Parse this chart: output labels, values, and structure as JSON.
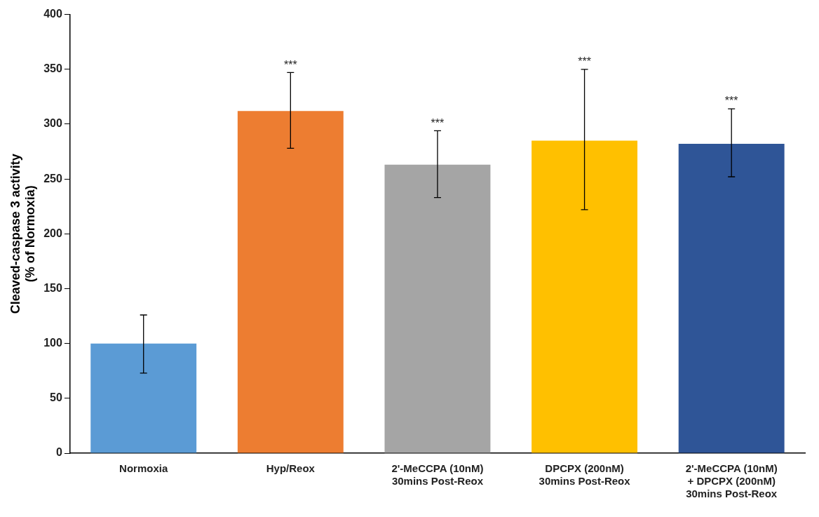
{
  "chart_data": {
    "type": "bar",
    "ylabel": "Cleaved-caspase 3 activity\n(% of Normoxia)",
    "categories": [
      "Normoxia",
      "Hyp/Reox",
      "2'-MeCCPA (10nM)\n30mins Post-Reox",
      "DPCPX (200nM)\n30mins Post-Reox",
      "2'-MeCCPA (10nM)\n+ DPCPX (200nM)\n30mins Post-Reox"
    ],
    "values": [
      100,
      312,
      263,
      285,
      282
    ],
    "colors": [
      "#5b9bd5",
      "#ed7d31",
      "#a5a5a5",
      "#ffc000",
      "#2f5597"
    ],
    "errors": [
      [
        73,
        126
      ],
      [
        278,
        347
      ],
      [
        233,
        294
      ],
      [
        222,
        350
      ],
      [
        252,
        314
      ]
    ],
    "ylim": [
      0,
      400
    ],
    "yticks": [
      0,
      50,
      100,
      150,
      200,
      250,
      300,
      350,
      400
    ],
    "grid": false,
    "annotations": [
      {
        "text": "***",
        "x": "Hyp/Reox",
        "y": 347
      },
      {
        "text": "***",
        "x": "2'-MeCCPA (10nM)\n30mins Post-Reox",
        "y": 294
      },
      {
        "text": "***",
        "x": "DPCPX (200nM)\n30mins Post-Reox",
        "y": 350
      },
      {
        "text": "***",
        "x": "2'-MeCCPA (10nM)\n+ DPCPX (200nM)\n30mins Post-Reox",
        "y": 314
      }
    ]
  }
}
